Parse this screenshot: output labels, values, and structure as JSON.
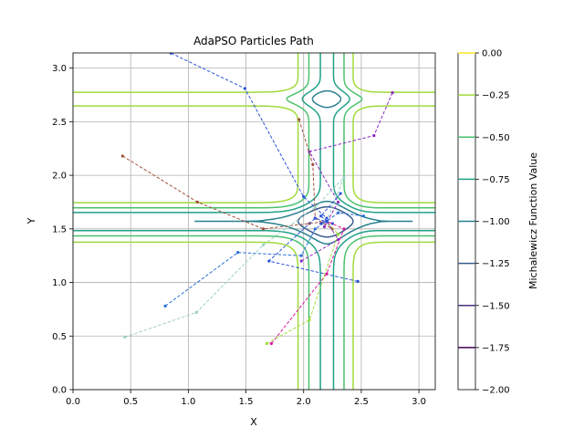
{
  "chart_data": {
    "type": "line",
    "title": "AdaPSO Particles Path",
    "xlabel": "X",
    "ylabel": "Y",
    "xlim": [
      0,
      3.1416
    ],
    "ylim": [
      0,
      3.1416
    ],
    "xticks": [
      "0.0",
      "0.5",
      "1.0",
      "1.5",
      "2.0",
      "2.5",
      "3.0"
    ],
    "yticks": [
      "0.0",
      "0.5",
      "1.0",
      "1.5",
      "2.0",
      "2.5",
      "3.0"
    ],
    "grid": true,
    "colorbar": {
      "label": "Michalewicz Function Value",
      "levels": [
        0.0,
        -0.25,
        -0.5,
        -0.75,
        -1.0,
        -1.25,
        -1.5,
        -1.75,
        -2.0
      ],
      "tick_labels": [
        "0.00",
        "−0.25",
        "−0.50",
        "−0.75",
        "−1.00",
        "−1.25",
        "−1.50",
        "−1.75",
        "−2.00"
      ],
      "colors": [
        "#fde725",
        "#a0da39",
        "#4ac16d",
        "#1fa187",
        "#277f8e",
        "#365c8d",
        "#46327e",
        "#440154"
      ]
    },
    "contours": {
      "levels": [
        -0.25,
        -0.5,
        -0.75,
        -1.0,
        -1.25
      ],
      "colors": [
        "#a0da39",
        "#4ac16d",
        "#1fa187",
        "#277f8e",
        "#365c8d"
      ]
    },
    "series": [
      {
        "color": "#2a52d8",
        "points": [
          [
            0.85,
            3.14
          ],
          [
            1.49,
            2.81
          ],
          [
            2.0,
            1.8
          ],
          [
            2.2,
            1.6
          ],
          [
            2.15,
            1.55
          ],
          [
            2.2,
            1.57
          ]
        ]
      },
      {
        "color": "#8b2dbf",
        "points": [
          [
            2.77,
            2.77
          ],
          [
            2.61,
            2.37
          ],
          [
            2.05,
            2.22
          ],
          [
            2.3,
            1.75
          ],
          [
            2.18,
            1.52
          ],
          [
            2.2,
            1.57
          ]
        ]
      },
      {
        "color": "#a0523d",
        "points": [
          [
            1.96,
            2.52
          ],
          [
            2.08,
            2.1
          ],
          [
            2.1,
            1.6
          ],
          [
            2.25,
            1.5
          ],
          [
            2.2,
            1.57
          ]
        ]
      },
      {
        "color": "#a0523d",
        "points": [
          [
            0.43,
            2.18
          ],
          [
            1.08,
            1.75
          ],
          [
            1.65,
            1.5
          ],
          [
            2.05,
            1.55
          ],
          [
            2.2,
            1.57
          ]
        ]
      },
      {
        "color": "#2a6fd8",
        "points": [
          [
            0.8,
            0.78
          ],
          [
            1.43,
            1.28
          ],
          [
            1.98,
            1.25
          ],
          [
            2.1,
            1.5
          ],
          [
            2.2,
            1.57
          ]
        ]
      },
      {
        "color": "#2a52d8",
        "points": [
          [
            2.47,
            1.01
          ],
          [
            1.7,
            1.2
          ],
          [
            2.1,
            1.6
          ],
          [
            2.25,
            1.55
          ],
          [
            2.2,
            1.57
          ]
        ]
      },
      {
        "color": "#9dd0c4",
        "points": [
          [
            0.45,
            0.49
          ],
          [
            1.07,
            0.72
          ],
          [
            1.65,
            1.35
          ],
          [
            2.1,
            1.7
          ],
          [
            2.35,
            1.98
          ],
          [
            2.2,
            1.57
          ]
        ]
      },
      {
        "color": "#e0169a",
        "points": [
          [
            1.72,
            0.43
          ],
          [
            2.2,
            1.08
          ],
          [
            2.35,
            1.5
          ],
          [
            2.2,
            1.57
          ]
        ]
      },
      {
        "color": "#a0da39",
        "points": [
          [
            1.68,
            0.43
          ],
          [
            2.05,
            0.65
          ],
          [
            2.3,
            1.45
          ],
          [
            2.2,
            1.57
          ]
        ]
      },
      {
        "color": "#8b2dbf",
        "points": [
          [
            1.98,
            1.2
          ],
          [
            2.3,
            1.4
          ],
          [
            2.2,
            1.57
          ]
        ]
      },
      {
        "color": "#2a6fd8",
        "points": [
          [
            2.52,
            1.62
          ],
          [
            2.3,
            1.65
          ],
          [
            2.2,
            1.57
          ]
        ]
      },
      {
        "color": "#2a52d8",
        "points": [
          [
            2.32,
            1.83
          ],
          [
            2.15,
            1.62
          ],
          [
            2.2,
            1.57
          ]
        ]
      }
    ]
  }
}
